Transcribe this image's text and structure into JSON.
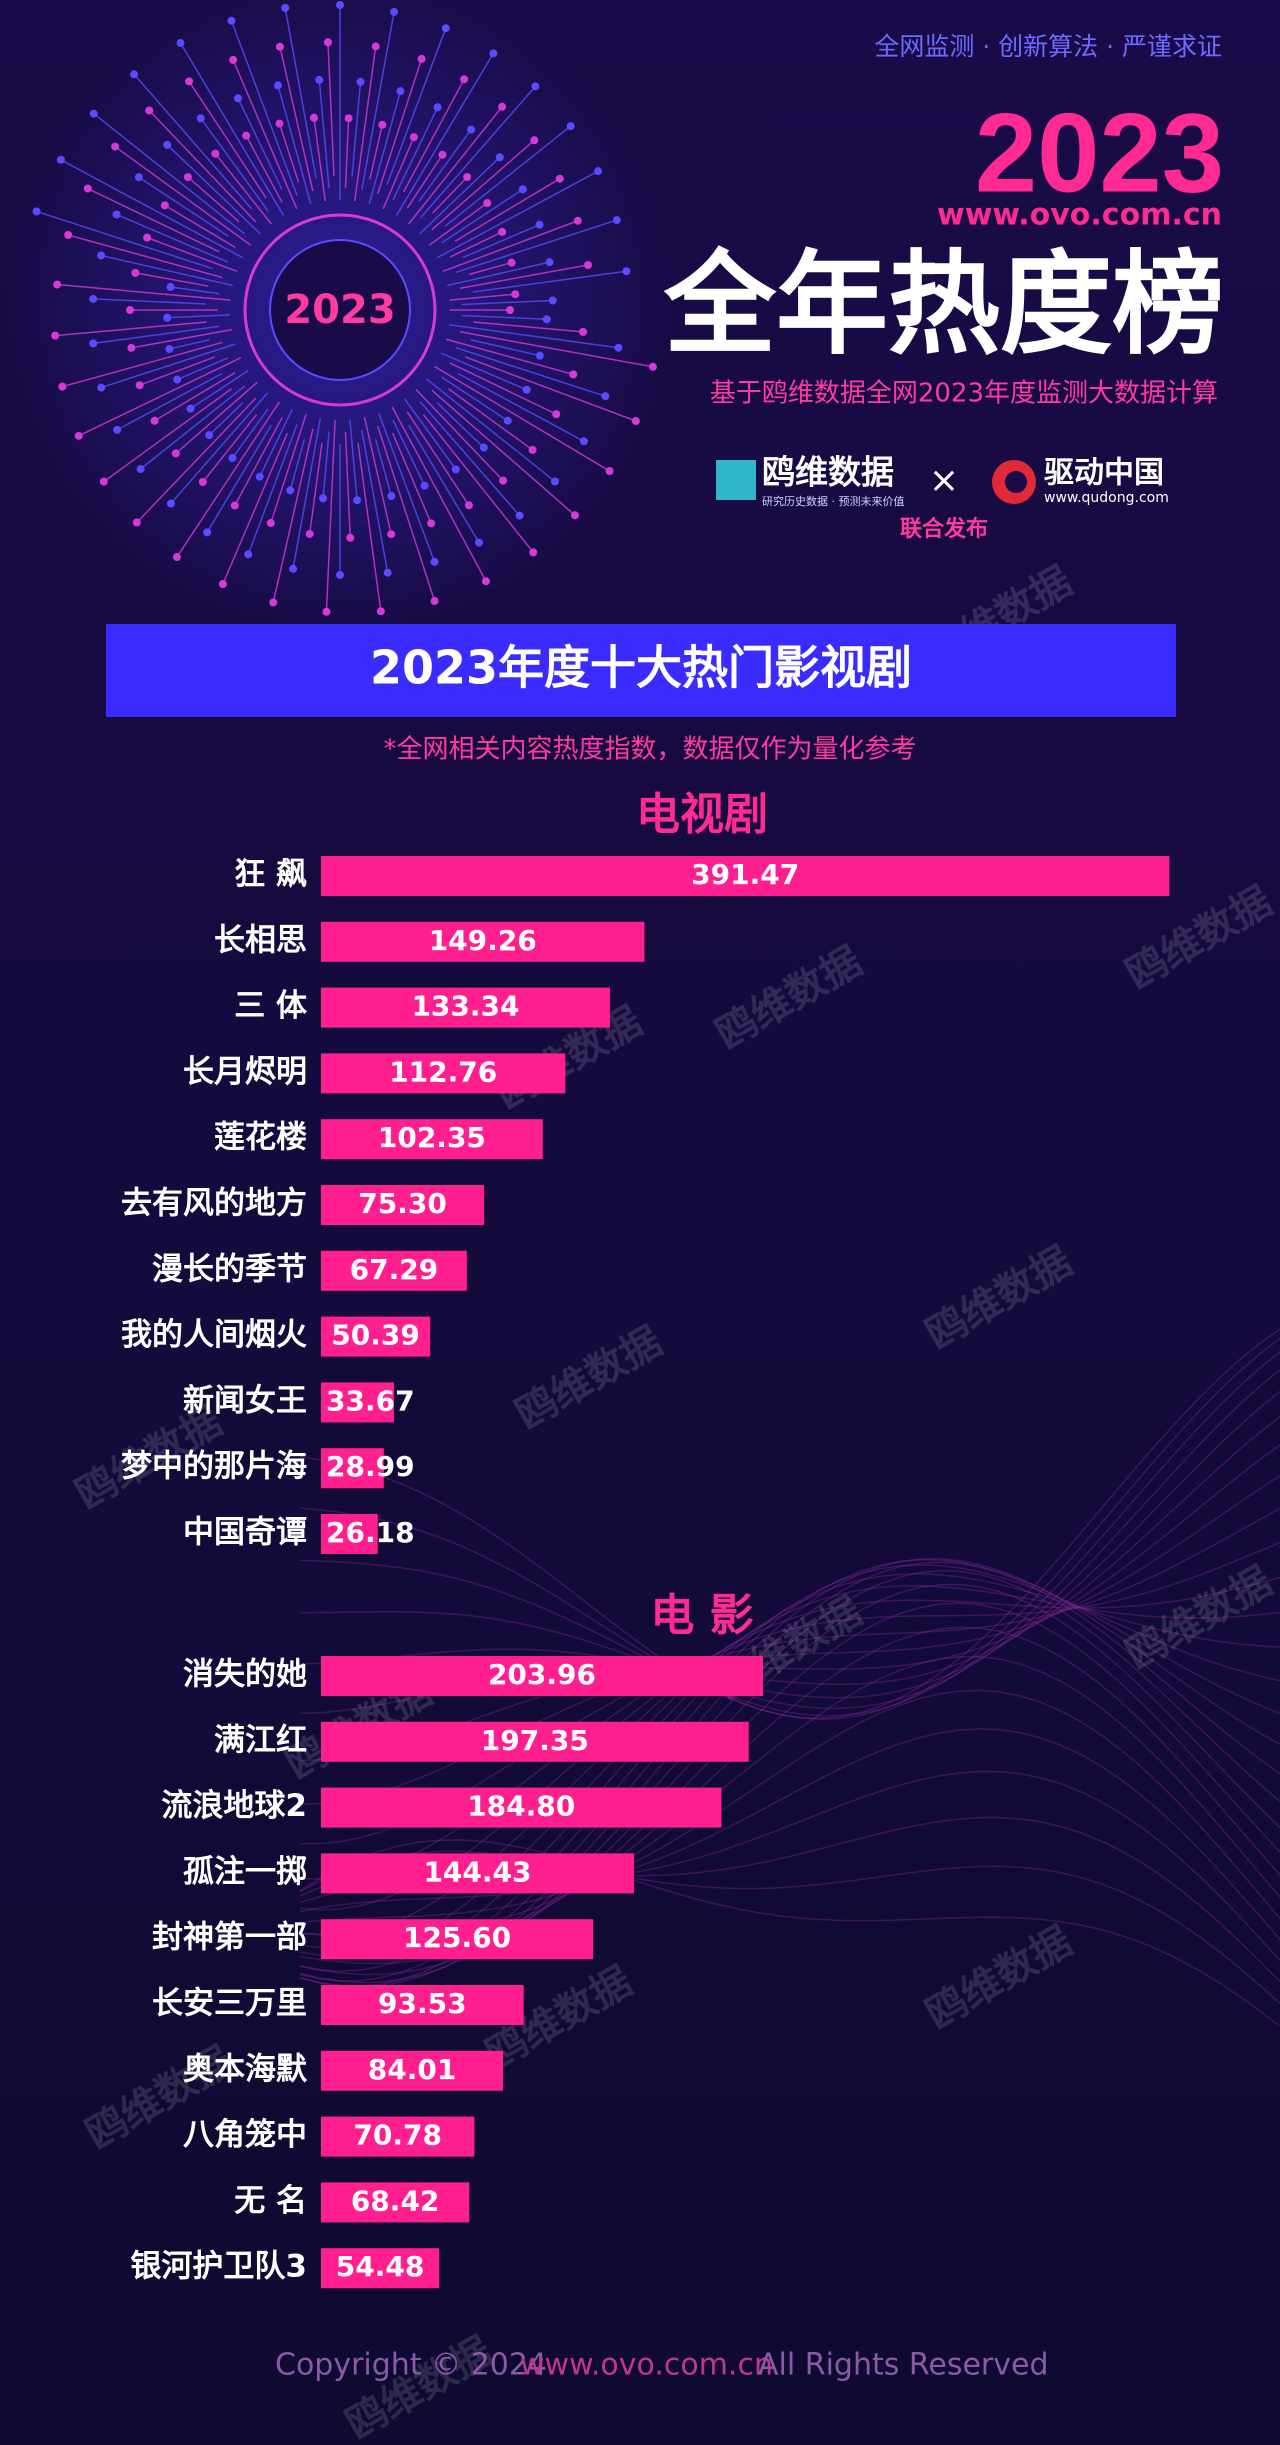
{
  "header": {
    "tagline": "全网监测 · 创新算法 · 严谨求证",
    "year": "2023",
    "site": "www.ovo.com.cn",
    "title": "全年热度榜",
    "subtitle": "基于鸥维数据全网2023年度监测大数据计算",
    "emblem": "2023",
    "logo_left": "鸥维数据",
    "logo_left_slogan": "研究历史数据 · 预测未来价值",
    "times": "×",
    "logo_right": "驱动中国",
    "logo_right_site": "www.qudong.com",
    "joint": "联合发布"
  },
  "banner": {
    "title": "2023年度十大热门影视剧",
    "note": "*全网相关内容热度指数，数据仅作为量化参考"
  },
  "watermark": "鸥维数据",
  "footer": {
    "copyright": "Copyright © 2024",
    "site": "www.ovo.com.cn",
    "rights": "All Rights Reserved"
  },
  "chart_data": [
    {
      "type": "bar",
      "title": "电视剧",
      "color": "#ff1f8f",
      "categories": [
        "狂 飙",
        "长相思",
        "三 体",
        "长月烬明",
        "莲花楼",
        "去有风的地方",
        "漫长的季节",
        "我的人间烟火",
        "新闻女王",
        "梦中的那片海",
        "中国奇谭"
      ],
      "values": [
        391.47,
        149.26,
        133.34,
        112.76,
        102.35,
        75.3,
        67.29,
        50.39,
        33.67,
        28.99,
        26.18
      ],
      "value_labels": [
        "391.47",
        "149.26",
        "133.34",
        "112.76",
        "102.35",
        "75.30",
        "67.29",
        "50.39",
        "33.67",
        "28.99",
        "26.18"
      ]
    },
    {
      "type": "bar",
      "title": "电 影",
      "color": "#ff1f8f",
      "categories": [
        "消失的她",
        "满江红",
        "流浪地球2",
        "孤注一掷",
        "封神第一部",
        "长安三万里",
        "奥本海默",
        "八角笼中",
        "无 名",
        "银河护卫队3"
      ],
      "values": [
        203.96,
        197.35,
        184.8,
        144.43,
        125.6,
        93.53,
        84.01,
        70.78,
        68.42,
        54.48
      ],
      "value_labels": [
        "203.96",
        "197.35",
        "184.80",
        "144.43",
        "125.60",
        "93.53",
        "84.01",
        "70.78",
        "68.42",
        "54.48"
      ]
    }
  ]
}
